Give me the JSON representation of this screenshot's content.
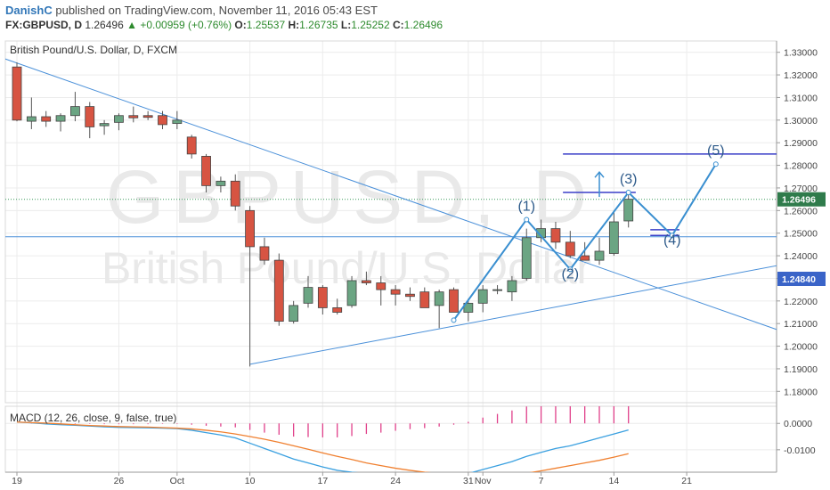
{
  "header": {
    "author": "DanishC",
    "published_text": "published on TradingView.com, November 11, 2016 05:43 EST",
    "symbol": "FX:GBPUSD, D",
    "last": "1.26496",
    "change_arrow": "▲",
    "change": "+0.00959 (+0.76%)",
    "o_label": "O:",
    "o_value": "1.25537",
    "h_label": "H:",
    "h_value": "1.26735",
    "l_label": "L:",
    "l_value": "1.25252",
    "c_label": "C:",
    "c_value": "1.26496"
  },
  "chart_data": [
    {
      "type": "candlestick",
      "title": "British Pound/U.S. Dollar, D, FXCM",
      "watermark_symbol": "GBPUSD, D",
      "watermark_name": "British Pound/U.S. Dollar",
      "ylim": [
        1.175,
        1.335
      ],
      "y_ticks": [
        "1.33000",
        "1.32000",
        "1.31000",
        "1.30000",
        "1.29000",
        "1.28000",
        "1.27000",
        "1.26000",
        "1.25000",
        "1.24000",
        "1.23000",
        "1.22000",
        "1.21000",
        "1.20000",
        "1.19000",
        "1.18000"
      ],
      "x_ticks": [
        {
          "label": "19",
          "index": 0
        },
        {
          "label": "26",
          "index": 7
        },
        {
          "label": "Oct",
          "index": 11
        },
        {
          "label": "10",
          "index": 16
        },
        {
          "label": "17",
          "index": 21
        },
        {
          "label": "24",
          "index": 26
        },
        {
          "label": "31",
          "index": 31
        },
        {
          "label": "Nov",
          "index": 32
        },
        {
          "label": "7",
          "index": 36
        },
        {
          "label": "14",
          "index": 41
        },
        {
          "label": "21",
          "index": 46
        }
      ],
      "last_price_label": "1.26496",
      "level_label": "1.24840",
      "level_price": 1.2484,
      "colors": {
        "up": "#6ba583",
        "down": "#d75442",
        "trendline": "#4a90d9",
        "wave": "#3a8fd0",
        "target": "#3a3fc8",
        "macd_hist": "#e0408a",
        "macd": "#3aa0e0",
        "signal": "#f08030"
      },
      "candles": [
        {
          "o": 1.3235,
          "h": 1.3255,
          "l": 1.2995,
          "c": 1.3
        },
        {
          "o": 1.2995,
          "h": 1.31,
          "l": 1.296,
          "c": 1.3015
        },
        {
          "o": 1.3015,
          "h": 1.304,
          "l": 1.297,
          "c": 1.2995
        },
        {
          "o": 1.2995,
          "h": 1.303,
          "l": 1.295,
          "c": 1.302
        },
        {
          "o": 1.302,
          "h": 1.3125,
          "l": 1.2995,
          "c": 1.306
        },
        {
          "o": 1.306,
          "h": 1.308,
          "l": 1.292,
          "c": 1.297
        },
        {
          "o": 1.2975,
          "h": 1.3,
          "l": 1.2935,
          "c": 1.2985
        },
        {
          "o": 1.299,
          "h": 1.303,
          "l": 1.2955,
          "c": 1.302
        },
        {
          "o": 1.302,
          "h": 1.306,
          "l": 1.299,
          "c": 1.301
        },
        {
          "o": 1.302,
          "h": 1.304,
          "l": 1.3,
          "c": 1.3012
        },
        {
          "o": 1.302,
          "h": 1.304,
          "l": 1.296,
          "c": 1.298
        },
        {
          "o": 1.2985,
          "h": 1.304,
          "l": 1.296,
          "c": 1.3
        },
        {
          "o": 1.2925,
          "h": 1.2935,
          "l": 1.283,
          "c": 1.285
        },
        {
          "o": 1.284,
          "h": 1.285,
          "l": 1.268,
          "c": 1.271
        },
        {
          "o": 1.271,
          "h": 1.275,
          "l": 1.268,
          "c": 1.273
        },
        {
          "o": 1.273,
          "h": 1.276,
          "l": 1.26,
          "c": 1.262
        },
        {
          "o": 1.26,
          "h": 1.262,
          "l": 1.191,
          "c": 1.244
        },
        {
          "o": 1.244,
          "h": 1.248,
          "l": 1.236,
          "c": 1.238
        },
        {
          "o": 1.238,
          "h": 1.241,
          "l": 1.209,
          "c": 1.211
        },
        {
          "o": 1.211,
          "h": 1.22,
          "l": 1.21,
          "c": 1.218
        },
        {
          "o": 1.219,
          "h": 1.231,
          "l": 1.217,
          "c": 1.226
        },
        {
          "o": 1.226,
          "h": 1.227,
          "l": 1.214,
          "c": 1.217
        },
        {
          "o": 1.217,
          "h": 1.221,
          "l": 1.214,
          "c": 1.215
        },
        {
          "o": 1.218,
          "h": 1.231,
          "l": 1.217,
          "c": 1.229
        },
        {
          "o": 1.229,
          "h": 1.233,
          "l": 1.227,
          "c": 1.228
        },
        {
          "o": 1.228,
          "h": 1.231,
          "l": 1.218,
          "c": 1.225
        },
        {
          "o": 1.225,
          "h": 1.227,
          "l": 1.218,
          "c": 1.223
        },
        {
          "o": 1.223,
          "h": 1.226,
          "l": 1.22,
          "c": 1.222
        },
        {
          "o": 1.224,
          "h": 1.226,
          "l": 1.217,
          "c": 1.217
        },
        {
          "o": 1.218,
          "h": 1.225,
          "l": 1.208,
          "c": 1.224
        },
        {
          "o": 1.225,
          "h": 1.226,
          "l": 1.215,
          "c": 1.215
        },
        {
          "o": 1.215,
          "h": 1.221,
          "l": 1.211,
          "c": 1.219
        },
        {
          "o": 1.219,
          "h": 1.227,
          "l": 1.215,
          "c": 1.225
        },
        {
          "o": 1.225,
          "h": 1.227,
          "l": 1.223,
          "c": 1.225
        },
        {
          "o": 1.224,
          "h": 1.231,
          "l": 1.22,
          "c": 1.229
        },
        {
          "o": 1.23,
          "h": 1.252,
          "l": 1.229,
          "c": 1.248
        },
        {
          "o": 1.248,
          "h": 1.256,
          "l": 1.246,
          "c": 1.252
        },
        {
          "o": 1.252,
          "h": 1.255,
          "l": 1.243,
          "c": 1.246
        },
        {
          "o": 1.246,
          "h": 1.251,
          "l": 1.239,
          "c": 1.24
        },
        {
          "o": 1.24,
          "h": 1.246,
          "l": 1.238,
          "c": 1.238
        },
        {
          "o": 1.238,
          "h": 1.248,
          "l": 1.236,
          "c": 1.242
        },
        {
          "o": 1.241,
          "h": 1.26,
          "l": 1.24,
          "c": 1.255
        },
        {
          "o": 1.2554,
          "h": 1.2674,
          "l": 1.2525,
          "c": 1.265
        }
      ],
      "annotations": {
        "trendlines": [
          {
            "x1": -1,
            "y1": 1.3275,
            "x2": 55,
            "y2": 1.201
          },
          {
            "x1": 16,
            "y1": 1.192,
            "x2": 55,
            "y2": 1.239
          },
          {
            "x1": -1,
            "y1": 1.2484,
            "x2": 55,
            "y2": 1.2484
          }
        ],
        "wave_path": [
          {
            "x": 30,
            "y": 1.2115
          },
          {
            "x": 35,
            "y": 1.256
          },
          {
            "x": 38,
            "y": 1.234
          },
          {
            "x": 42,
            "y": 1.268
          },
          {
            "x": 45,
            "y": 1.249
          },
          {
            "x": 48,
            "y": 1.2805
          }
        ],
        "target_lines": [
          {
            "x1": 37.5,
            "x2": 55,
            "y": 1.285
          },
          {
            "x1": 37.5,
            "x2": 42.5,
            "y": 1.268
          },
          {
            "x1": 43.5,
            "x2": 45.5,
            "y": 1.2515
          },
          {
            "x1": 43.5,
            "x2": 45.5,
            "y": 1.249
          }
        ],
        "arrow": {
          "x": 40,
          "y1": 1.266,
          "y2": 1.277
        },
        "labels": [
          {
            "text": "(1)",
            "x": 35,
            "y": 1.26
          },
          {
            "text": "(2)",
            "x": 38,
            "y": 1.23
          },
          {
            "text": "(3)",
            "x": 42,
            "y": 1.272
          },
          {
            "text": "(4)",
            "x": 45,
            "y": 1.245
          },
          {
            "text": "(5)",
            "x": 48,
            "y": 1.2845
          }
        ]
      }
    },
    {
      "type": "macd",
      "title": "MACD (12, 26, close, 9, false, true)",
      "ylim": [
        -0.0185,
        0.0065
      ],
      "y_ticks": [
        "0.0000",
        "-0.0100"
      ],
      "macd_values": [
        0.0005,
        0.0002,
        -0.0002,
        -0.0005,
        -0.0007,
        -0.001,
        -0.0013,
        -0.0015,
        -0.0016,
        -0.0017,
        -0.0018,
        -0.002,
        -0.0026,
        -0.0035,
        -0.0044,
        -0.0055,
        -0.0075,
        -0.0095,
        -0.0115,
        -0.0135,
        -0.015,
        -0.0165,
        -0.0178,
        -0.0185,
        -0.019,
        -0.0195,
        -0.0198,
        -0.02,
        -0.0203,
        -0.0202,
        -0.02,
        -0.019,
        -0.0175,
        -0.016,
        -0.0145,
        -0.0125,
        -0.011,
        -0.0095,
        -0.0085,
        -0.007,
        -0.0055,
        -0.004,
        -0.0025
      ],
      "signal_values": [
        0.0005,
        0.0003,
        0.0001,
        -0.0002,
        -0.0005,
        -0.0008,
        -0.001,
        -0.0012,
        -0.0013,
        -0.0014,
        -0.0016,
        -0.0018,
        -0.0021,
        -0.0026,
        -0.0032,
        -0.004,
        -0.005,
        -0.006,
        -0.0072,
        -0.0085,
        -0.0098,
        -0.0112,
        -0.0125,
        -0.0137,
        -0.015,
        -0.016,
        -0.017,
        -0.0178,
        -0.0185,
        -0.019,
        -0.0195,
        -0.0196,
        -0.0197,
        -0.0196,
        -0.0194,
        -0.0189,
        -0.018,
        -0.017,
        -0.016,
        -0.015,
        -0.014,
        -0.0128,
        -0.0115
      ],
      "hist_values": [
        0.0,
        -0.0001,
        -0.0003,
        -0.0003,
        -0.0002,
        -0.0002,
        -0.0003,
        -0.0003,
        -0.0003,
        -0.0003,
        -0.0002,
        -0.0002,
        -0.0005,
        -0.0009,
        -0.0012,
        -0.0015,
        -0.0025,
        -0.0035,
        -0.0043,
        -0.005,
        -0.0052,
        -0.0053,
        -0.0053,
        -0.0048,
        -0.004,
        -0.0035,
        -0.0028,
        -0.0022,
        -0.0018,
        -0.0012,
        -0.0005,
        0.0006,
        0.0022,
        0.0036,
        0.0049,
        0.0064,
        0.007,
        0.0075,
        0.0075,
        0.008,
        0.0085,
        0.0088,
        0.009
      ]
    }
  ]
}
